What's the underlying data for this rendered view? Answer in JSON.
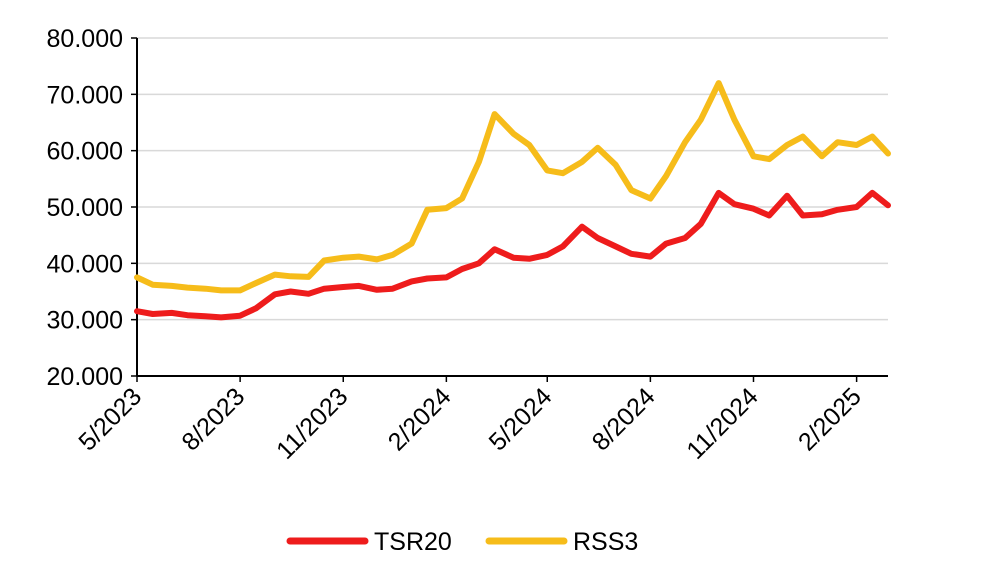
{
  "chart_data": {
    "type": "line",
    "title": "",
    "xlabel": "",
    "ylabel": "",
    "ylim": [
      20000,
      80000
    ],
    "y_ticks": [
      "20.000",
      "30.000",
      "40.000",
      "50.000",
      "60.000",
      "70.000",
      "80.000"
    ],
    "y_tick_values": [
      20000,
      30000,
      40000,
      50000,
      60000,
      70000,
      80000
    ],
    "x_ticks": [
      "5/2023",
      "8/2023",
      "11/2023",
      "2/2024",
      "5/2024",
      "8/2024",
      "11/2024",
      "2/2025"
    ],
    "xlim": [
      "2023-05-01",
      "2025-03-01"
    ],
    "grid": "horizontal",
    "legend_position": "bottom",
    "series": [
      {
        "name": "TSR20",
        "color": "#ee1c1c",
        "points": [
          [
            "2023-05-01",
            31500
          ],
          [
            "2023-05-15",
            31000
          ],
          [
            "2023-06-01",
            31200
          ],
          [
            "2023-06-15",
            30800
          ],
          [
            "2023-07-01",
            30600
          ],
          [
            "2023-07-15",
            30400
          ],
          [
            "2023-08-01",
            30700
          ],
          [
            "2023-08-15",
            32000
          ],
          [
            "2023-09-01",
            34500
          ],
          [
            "2023-09-15",
            35000
          ],
          [
            "2023-10-01",
            34600
          ],
          [
            "2023-10-15",
            35500
          ],
          [
            "2023-11-01",
            35800
          ],
          [
            "2023-11-15",
            36000
          ],
          [
            "2023-12-01",
            35300
          ],
          [
            "2023-12-15",
            35500
          ],
          [
            "2024-01-01",
            36800
          ],
          [
            "2024-01-15",
            37300
          ],
          [
            "2024-02-01",
            37500
          ],
          [
            "2024-02-15",
            39000
          ],
          [
            "2024-03-01",
            40000
          ],
          [
            "2024-03-15",
            42500
          ],
          [
            "2024-04-01",
            41000
          ],
          [
            "2024-04-15",
            40800
          ],
          [
            "2024-05-01",
            41500
          ],
          [
            "2024-05-15",
            43000
          ],
          [
            "2024-06-01",
            46500
          ],
          [
            "2024-06-15",
            44500
          ],
          [
            "2024-07-01",
            43000
          ],
          [
            "2024-07-15",
            41700
          ],
          [
            "2024-08-01",
            41200
          ],
          [
            "2024-08-15",
            43500
          ],
          [
            "2024-09-01",
            44500
          ],
          [
            "2024-09-15",
            47000
          ],
          [
            "2024-10-01",
            52500
          ],
          [
            "2024-10-15",
            50500
          ],
          [
            "2024-11-01",
            49700
          ],
          [
            "2024-11-15",
            48500
          ],
          [
            "2024-12-01",
            52000
          ],
          [
            "2024-12-15",
            48500
          ],
          [
            "2025-01-01",
            48700
          ],
          [
            "2025-01-15",
            49500
          ],
          [
            "2025-02-01",
            50000
          ],
          [
            "2025-02-15",
            52500
          ],
          [
            "2025-03-01",
            50300
          ]
        ]
      },
      {
        "name": "RSS3",
        "color": "#f6bc1a",
        "points": [
          [
            "2023-05-01",
            37500
          ],
          [
            "2023-05-15",
            36200
          ],
          [
            "2023-06-01",
            36000
          ],
          [
            "2023-06-15",
            35700
          ],
          [
            "2023-07-01",
            35500
          ],
          [
            "2023-07-15",
            35200
          ],
          [
            "2023-08-01",
            35200
          ],
          [
            "2023-08-15",
            36500
          ],
          [
            "2023-09-01",
            38000
          ],
          [
            "2023-09-15",
            37700
          ],
          [
            "2023-10-01",
            37600
          ],
          [
            "2023-10-15",
            40500
          ],
          [
            "2023-11-01",
            41000
          ],
          [
            "2023-11-15",
            41200
          ],
          [
            "2023-12-01",
            40700
          ],
          [
            "2023-12-15",
            41500
          ],
          [
            "2024-01-01",
            43500
          ],
          [
            "2024-01-15",
            49500
          ],
          [
            "2024-02-01",
            49800
          ],
          [
            "2024-02-15",
            51500
          ],
          [
            "2024-03-01",
            58000
          ],
          [
            "2024-03-15",
            66500
          ],
          [
            "2024-04-01",
            63000
          ],
          [
            "2024-04-15",
            61000
          ],
          [
            "2024-05-01",
            56500
          ],
          [
            "2024-05-15",
            56000
          ],
          [
            "2024-06-01",
            58000
          ],
          [
            "2024-06-15",
            60500
          ],
          [
            "2024-07-01",
            57500
          ],
          [
            "2024-07-15",
            53000
          ],
          [
            "2024-08-01",
            51500
          ],
          [
            "2024-08-15",
            55500
          ],
          [
            "2024-09-01",
            61500
          ],
          [
            "2024-09-15",
            65500
          ],
          [
            "2024-10-01",
            72000
          ],
          [
            "2024-10-15",
            65500
          ],
          [
            "2024-11-01",
            59000
          ],
          [
            "2024-11-15",
            58500
          ],
          [
            "2024-12-01",
            61000
          ],
          [
            "2024-12-15",
            62500
          ],
          [
            "2025-01-01",
            59000
          ],
          [
            "2025-01-15",
            61500
          ],
          [
            "2025-02-01",
            61000
          ],
          [
            "2025-02-15",
            62500
          ],
          [
            "2025-03-01",
            59500
          ]
        ]
      }
    ]
  }
}
